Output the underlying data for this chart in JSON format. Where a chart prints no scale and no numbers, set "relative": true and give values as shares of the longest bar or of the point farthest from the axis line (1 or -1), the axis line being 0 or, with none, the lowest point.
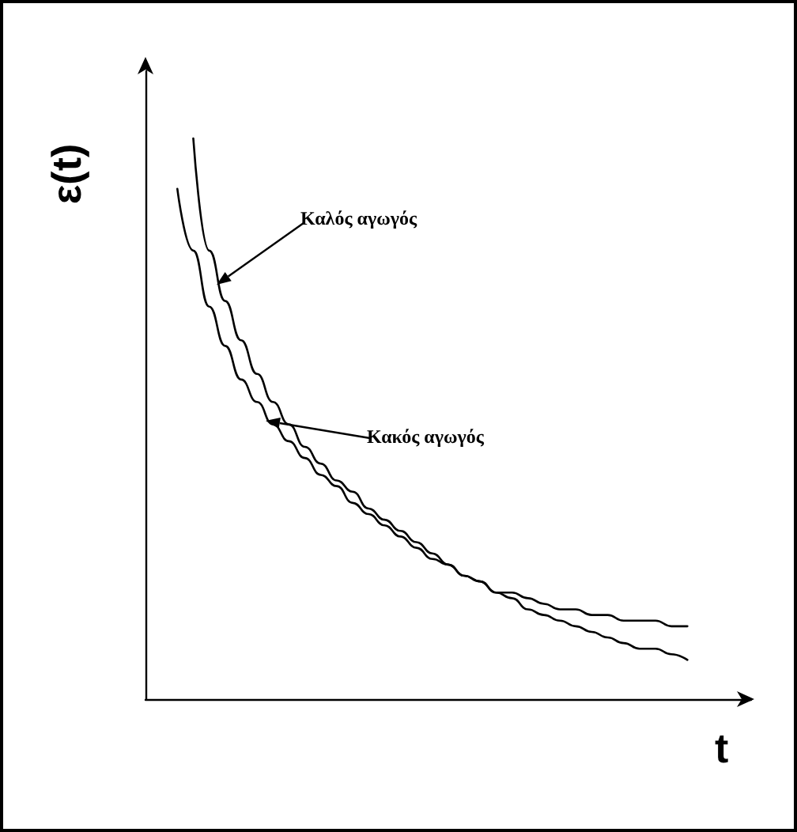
{
  "chart_data": {
    "type": "line",
    "relative": true,
    "xlabel": "t",
    "ylabel": "ε(t)",
    "grid": false,
    "marker": "none",
    "line_style": "solid",
    "categories": [
      null,
      null,
      null,
      null,
      null,
      null,
      null,
      null,
      null,
      null,
      null,
      null,
      null,
      null,
      null,
      null,
      null,
      null,
      null,
      null,
      null,
      null,
      null,
      null,
      null,
      null,
      null,
      null,
      null,
      null,
      null,
      null,
      null
    ],
    "series": [
      {
        "color": "#000000",
        "values": [
          null,
          1.0,
          0.8,
          0.71,
          0.64,
          0.58,
          0.53,
          0.49,
          0.45,
          0.42,
          0.39,
          0.37,
          0.34,
          0.32,
          0.3,
          0.28,
          0.26,
          0.24,
          0.22,
          0.21,
          0.19,
          0.18,
          0.16,
          0.15,
          0.14,
          0.13,
          0.12,
          0.11,
          0.1,
          0.09,
          0.09,
          0.08,
          0.07
        ]
      },
      {
        "color": "#000000",
        "values": [
          0.91,
          0.8,
          0.7,
          0.63,
          0.57,
          0.53,
          0.49,
          0.46,
          0.43,
          0.4,
          0.38,
          0.35,
          0.33,
          0.31,
          0.29,
          0.27,
          0.25,
          0.24,
          0.22,
          0.21,
          0.19,
          0.19,
          0.18,
          0.17,
          0.16,
          0.16,
          0.15,
          0.15,
          0.14,
          0.14,
          0.14,
          0.13,
          0.13
        ]
      }
    ],
    "annotations": [
      "Καλός αγωγός",
      "Κακός αγωγός"
    ]
  }
}
